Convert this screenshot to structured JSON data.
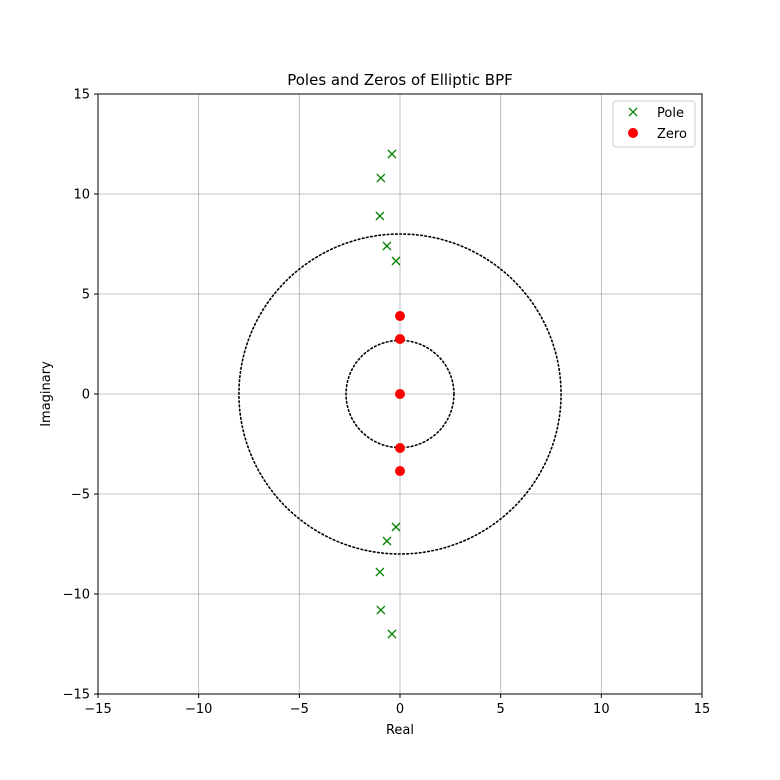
{
  "chart_data": {
    "type": "scatter",
    "title": "Poles and Zeros  of Elliptic BPF",
    "xlabel": "Real",
    "ylabel": "Imaginary",
    "xlim": [
      -15,
      15
    ],
    "ylim": [
      -15,
      15
    ],
    "x_ticks": [
      -15,
      -10,
      -5,
      0,
      5,
      10,
      15
    ],
    "y_ticks": [
      -15,
      -10,
      -5,
      0,
      5,
      10,
      15
    ],
    "x_tick_labels": [
      "−15",
      "−10",
      "−5",
      "0",
      "5",
      "10",
      "15"
    ],
    "y_tick_labels": [
      "−15",
      "−10",
      "−5",
      "0",
      "5",
      "10",
      "15"
    ],
    "grid": true,
    "legend_position": "top-right",
    "series": [
      {
        "name": "Pole",
        "marker": "x",
        "color": "#008000",
        "points": [
          {
            "x": -0.4,
            "y": 12.0
          },
          {
            "x": -0.95,
            "y": 10.8
          },
          {
            "x": -1.0,
            "y": 8.9
          },
          {
            "x": -0.65,
            "y": 7.4
          },
          {
            "x": -0.2,
            "y": 6.65
          },
          {
            "x": -0.4,
            "y": -12.0
          },
          {
            "x": -0.95,
            "y": -10.8
          },
          {
            "x": -1.0,
            "y": -8.9
          },
          {
            "x": -0.65,
            "y": -7.35
          },
          {
            "x": -0.2,
            "y": -6.65
          }
        ]
      },
      {
        "name": "Zero",
        "marker": "o",
        "color": "#ff0000",
        "points": [
          {
            "x": 0,
            "y": 3.9
          },
          {
            "x": 0,
            "y": 2.75
          },
          {
            "x": 0,
            "y": 0
          },
          {
            "x": 0,
            "y": -2.7
          },
          {
            "x": 0,
            "y": -3.85
          }
        ]
      }
    ],
    "reference_circles": [
      {
        "center": [
          0,
          0
        ],
        "radius": 8,
        "style": "dotted",
        "color": "#000000"
      },
      {
        "center": [
          0,
          0
        ],
        "radius": 2.68,
        "style": "dotted",
        "color": "#000000"
      }
    ]
  }
}
